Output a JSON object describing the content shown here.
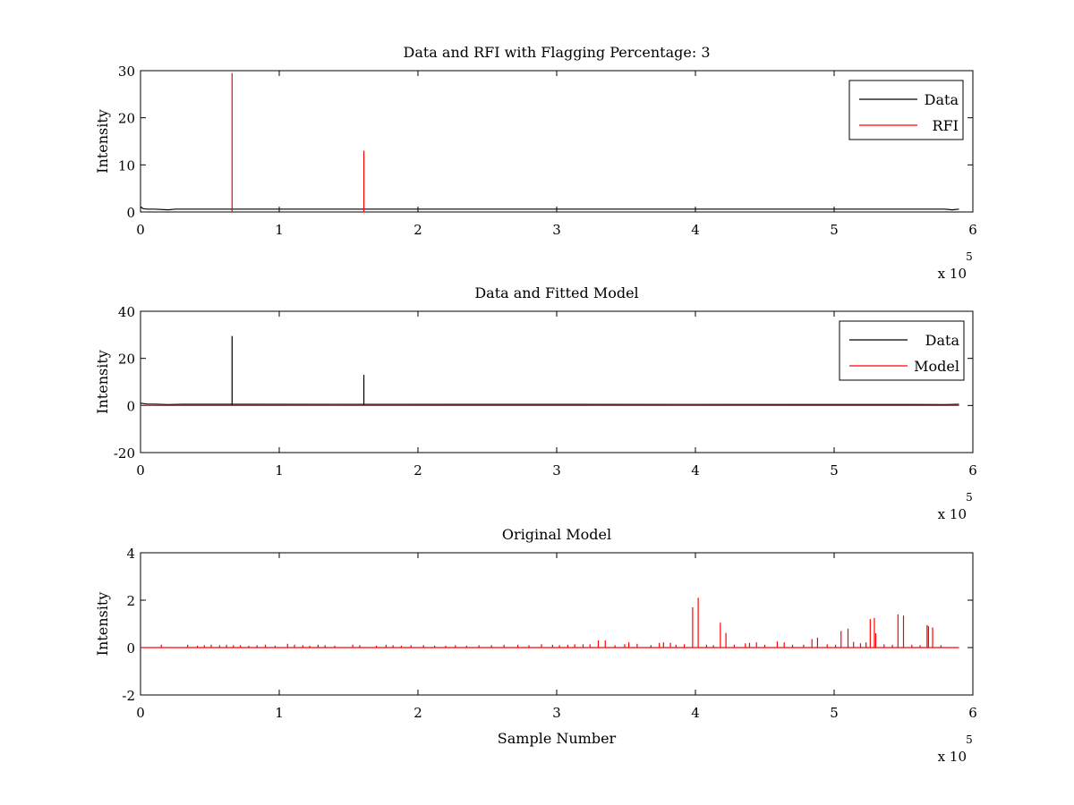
{
  "chart_data": [
    {
      "type": "line",
      "title": "Data and RFI with Flagging Percentage: 3",
      "xlabel": "",
      "ylabel": "Intensity",
      "xlim": [
        0,
        6
      ],
      "ylim": [
        0,
        30
      ],
      "x_multiplier_label": "x 10",
      "x_multiplier_exponent": "5",
      "x_ticks": [
        0,
        1,
        2,
        3,
        4,
        5,
        6
      ],
      "y_ticks": [
        0,
        10,
        20,
        30
      ],
      "legend_position": "top-right",
      "grid": false,
      "series": [
        {
          "name": "Data",
          "color": "#000000",
          "baseline": {
            "x": [
              0,
              0.02,
              0.05,
              0.1,
              0.2,
              0.25,
              0.3,
              5.8,
              5.85,
              5.9
            ],
            "y": [
              1.1,
              0.7,
              0.6,
              0.6,
              0.45,
              0.6,
              0.6,
              0.6,
              0.45,
              0.6
            ]
          },
          "spikes": []
        },
        {
          "name": "RFI",
          "color": "#ff0000",
          "baseline": {
            "x": [],
            "y": []
          },
          "spikes": [
            {
              "x": 0.66,
              "y": 29.5
            },
            {
              "x": 1.61,
              "y": 13.0
            }
          ]
        }
      ]
    },
    {
      "type": "line",
      "title": "Data and Fitted Model",
      "xlabel": "",
      "ylabel": "Intensity",
      "xlim": [
        0,
        6
      ],
      "ylim": [
        -20,
        40
      ],
      "x_multiplier_label": "x 10",
      "x_multiplier_exponent": "5",
      "x_ticks": [
        0,
        1,
        2,
        3,
        4,
        5,
        6
      ],
      "y_ticks": [
        -20,
        0,
        20,
        40
      ],
      "legend_position": "top-right",
      "grid": false,
      "series": [
        {
          "name": "Data",
          "color": "#000000",
          "baseline": {
            "x": [
              0,
              0.02,
              0.05,
              0.1,
              0.2,
              0.3,
              5.8,
              5.9
            ],
            "y": [
              1.0,
              0.8,
              0.6,
              0.6,
              0.4,
              0.5,
              0.4,
              0.5
            ]
          },
          "spikes": [
            {
              "x": 0.66,
              "y": 29.5
            },
            {
              "x": 1.61,
              "y": 13.0
            }
          ]
        },
        {
          "name": "Model",
          "color": "#ff0000",
          "baseline": {
            "x": [
              0,
              5.9
            ],
            "y": [
              0,
              0
            ]
          },
          "spikes": []
        }
      ]
    },
    {
      "type": "line",
      "title": "Original Model",
      "xlabel": "Sample Number",
      "ylabel": "Intensity",
      "xlim": [
        0,
        6
      ],
      "ylim": [
        -2,
        4
      ],
      "x_multiplier_label": "x 10",
      "x_multiplier_exponent": "5",
      "x_ticks": [
        0,
        1,
        2,
        3,
        4,
        5,
        6
      ],
      "y_ticks": [
        -2,
        0,
        2,
        4
      ],
      "legend_position": "none",
      "grid": false,
      "series": [
        {
          "name": "",
          "color": "#ff0000",
          "baseline": {
            "x": [
              0,
              5.9
            ],
            "y": [
              0,
              0
            ]
          },
          "spikes": [
            {
              "x": 0.15,
              "y": 0.12
            },
            {
              "x": 0.34,
              "y": 0.12
            },
            {
              "x": 0.41,
              "y": 0.08
            },
            {
              "x": 0.46,
              "y": 0.1
            },
            {
              "x": 0.51,
              "y": 0.12
            },
            {
              "x": 0.57,
              "y": 0.1
            },
            {
              "x": 0.62,
              "y": 0.12
            },
            {
              "x": 0.67,
              "y": 0.1
            },
            {
              "x": 0.72,
              "y": 0.1
            },
            {
              "x": 0.78,
              "y": 0.08
            },
            {
              "x": 0.84,
              "y": 0.1
            },
            {
              "x": 0.9,
              "y": 0.12
            },
            {
              "x": 0.97,
              "y": 0.08
            },
            {
              "x": 1.06,
              "y": 0.16
            },
            {
              "x": 1.11,
              "y": 0.12
            },
            {
              "x": 1.17,
              "y": 0.1
            },
            {
              "x": 1.22,
              "y": 0.08
            },
            {
              "x": 1.28,
              "y": 0.12
            },
            {
              "x": 1.33,
              "y": 0.1
            },
            {
              "x": 1.4,
              "y": 0.08
            },
            {
              "x": 1.53,
              "y": 0.12
            },
            {
              "x": 1.58,
              "y": 0.1
            },
            {
              "x": 1.7,
              "y": 0.08
            },
            {
              "x": 1.77,
              "y": 0.12
            },
            {
              "x": 1.82,
              "y": 0.1
            },
            {
              "x": 1.88,
              "y": 0.08
            },
            {
              "x": 1.95,
              "y": 0.1
            },
            {
              "x": 2.04,
              "y": 0.1
            },
            {
              "x": 2.12,
              "y": 0.08
            },
            {
              "x": 2.2,
              "y": 0.08
            },
            {
              "x": 2.27,
              "y": 0.1
            },
            {
              "x": 2.35,
              "y": 0.08
            },
            {
              "x": 2.44,
              "y": 0.1
            },
            {
              "x": 2.53,
              "y": 0.1
            },
            {
              "x": 2.62,
              "y": 0.12
            },
            {
              "x": 2.72,
              "y": 0.12
            },
            {
              "x": 2.8,
              "y": 0.1
            },
            {
              "x": 2.89,
              "y": 0.14
            },
            {
              "x": 2.97,
              "y": 0.12
            },
            {
              "x": 3.02,
              "y": 0.1
            },
            {
              "x": 3.08,
              "y": 0.12
            },
            {
              "x": 3.13,
              "y": 0.14
            },
            {
              "x": 3.19,
              "y": 0.14
            },
            {
              "x": 3.24,
              "y": 0.14
            },
            {
              "x": 3.3,
              "y": 0.3
            },
            {
              "x": 3.35,
              "y": 0.3
            },
            {
              "x": 3.42,
              "y": 0.1
            },
            {
              "x": 3.49,
              "y": 0.14
            },
            {
              "x": 3.52,
              "y": 0.22
            },
            {
              "x": 3.58,
              "y": 0.16
            },
            {
              "x": 3.68,
              "y": 0.1
            },
            {
              "x": 3.74,
              "y": 0.2
            },
            {
              "x": 3.77,
              "y": 0.22
            },
            {
              "x": 3.82,
              "y": 0.2
            },
            {
              "x": 3.86,
              "y": 0.12
            },
            {
              "x": 3.92,
              "y": 0.14
            },
            {
              "x": 3.98,
              "y": 1.7
            },
            {
              "x": 4.02,
              "y": 2.1
            },
            {
              "x": 4.08,
              "y": 0.12
            },
            {
              "x": 4.13,
              "y": 0.1
            },
            {
              "x": 4.18,
              "y": 1.05
            },
            {
              "x": 4.22,
              "y": 0.62
            },
            {
              "x": 4.28,
              "y": 0.12
            },
            {
              "x": 4.36,
              "y": 0.18
            },
            {
              "x": 4.39,
              "y": 0.2
            },
            {
              "x": 4.44,
              "y": 0.22
            },
            {
              "x": 4.5,
              "y": 0.12
            },
            {
              "x": 4.59,
              "y": 0.26
            },
            {
              "x": 4.64,
              "y": 0.22
            },
            {
              "x": 4.7,
              "y": 0.12
            },
            {
              "x": 4.78,
              "y": 0.12
            },
            {
              "x": 4.84,
              "y": 0.36
            },
            {
              "x": 4.88,
              "y": 0.42
            },
            {
              "x": 4.95,
              "y": 0.14
            },
            {
              "x": 5.01,
              "y": 0.12
            },
            {
              "x": 5.05,
              "y": 0.7
            },
            {
              "x": 5.1,
              "y": 0.8
            },
            {
              "x": 5.14,
              "y": 0.24
            },
            {
              "x": 5.19,
              "y": 0.18
            },
            {
              "x": 5.23,
              "y": 0.22
            },
            {
              "x": 5.26,
              "y": 1.2
            },
            {
              "x": 5.29,
              "y": 1.25
            },
            {
              "x": 5.3,
              "y": 0.6
            },
            {
              "x": 5.36,
              "y": 0.14
            },
            {
              "x": 5.42,
              "y": 0.12
            },
            {
              "x": 5.46,
              "y": 1.4
            },
            {
              "x": 5.5,
              "y": 1.35
            },
            {
              "x": 5.56,
              "y": 0.12
            },
            {
              "x": 5.62,
              "y": 0.1
            },
            {
              "x": 5.67,
              "y": 0.95
            },
            {
              "x": 5.68,
              "y": 0.9
            },
            {
              "x": 5.71,
              "y": 0.85
            },
            {
              "x": 5.77,
              "y": 0.1
            }
          ]
        }
      ]
    }
  ]
}
